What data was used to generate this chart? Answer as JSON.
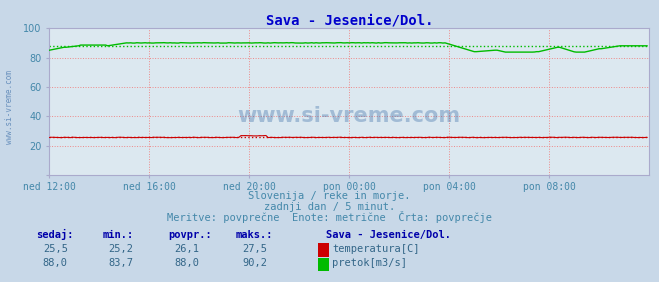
{
  "title": "Sava - Jesenice/Dol.",
  "title_color": "#0000cc",
  "plot_bg_color": "#dce8f0",
  "outer_bg_color": "#c8d8e8",
  "grid_color": "#ee8888",
  "tick_color": "#4488aa",
  "x_tick_labels": [
    "ned 12:00",
    "ned 16:00",
    "ned 20:00",
    "pon 00:00",
    "pon 04:00",
    "pon 08:00"
  ],
  "x_tick_positions": [
    0,
    48,
    96,
    144,
    192,
    240
  ],
  "y_ticks": [
    0,
    20,
    40,
    60,
    80,
    100
  ],
  "ylim": [
    0,
    100
  ],
  "xlim_n": 288,
  "temp_color": "#cc0000",
  "flow_color": "#00bb00",
  "watermark_text": "www.si-vreme.com",
  "watermark_color": "#1a5599",
  "watermark_alpha": 0.3,
  "subtitle1": "Slovenija / reke in morje.",
  "subtitle2": "zadnji dan / 5 minut.",
  "subtitle3": "Meritve: povprečne  Enote: metrične  Črta: povprečje",
  "subtitle_color": "#4488aa",
  "table_header_color": "#0000aa",
  "table_text_color": "#336688",
  "legend_title": "Sava - Jesenice/Dol.",
  "legend_title_color": "#0000aa",
  "sedaj_temp": "25,5",
  "min_temp": "25,2",
  "povpr_temp": "26,1",
  "maks_temp": "27,5",
  "sedaj_flow": "88,0",
  "min_flow": "83,7",
  "povpr_flow": "88,0",
  "maks_flow": "90,2",
  "temp_avg_value": 26.1,
  "flow_avg_value": 88.0,
  "temp_min": 25.2,
  "temp_max": 27.5,
  "flow_min": 83.7,
  "flow_max": 90.2,
  "n_points": 288,
  "frame_color": "#aaaacc",
  "left_label": "www.si-vreme.com"
}
